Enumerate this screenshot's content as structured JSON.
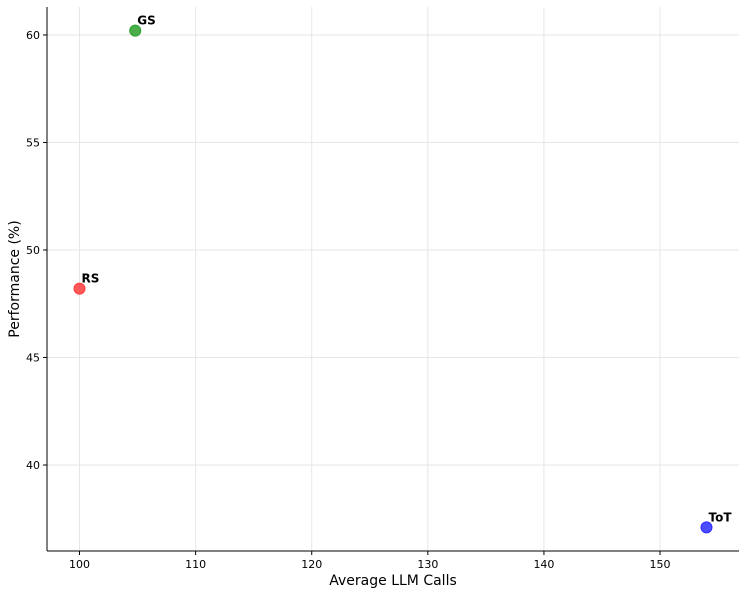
{
  "chart_data": {
    "type": "scatter",
    "title": "",
    "xlabel": "Average LLM Calls",
    "ylabel": "Performance (%)",
    "xlim": [
      97.2,
      156.8
    ],
    "ylim": [
      36.0,
      61.3
    ],
    "xticks": [
      100,
      110,
      120,
      130,
      140,
      150
    ],
    "yticks": [
      40,
      45,
      50,
      55,
      60
    ],
    "grid": true,
    "points": [
      {
        "label": "GS",
        "x": 104.8,
        "y": 60.2,
        "color": "#2ca02c"
      },
      {
        "label": "RS",
        "x": 100.0,
        "y": 48.2,
        "color": "#ff3b3b"
      },
      {
        "label": "ToT",
        "x": 154.0,
        "y": 37.1,
        "color": "#2b2bff"
      }
    ]
  }
}
